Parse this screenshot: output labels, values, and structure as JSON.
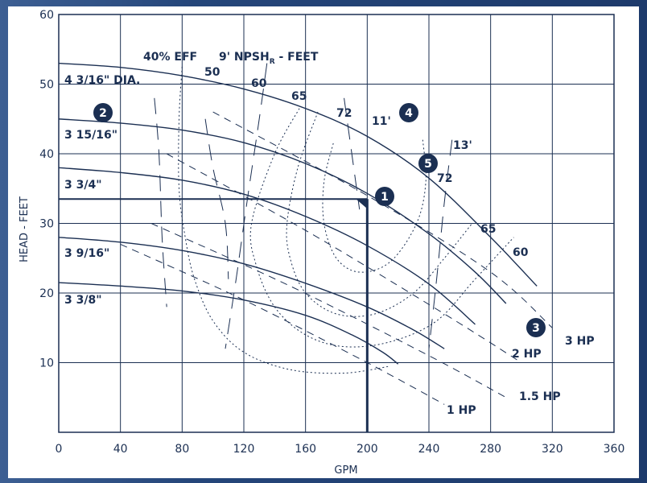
{
  "chart_data": {
    "type": "line",
    "xlabel": "GPM",
    "ylabel": "HEAD - FEET",
    "xlim": [
      0,
      360
    ],
    "ylim": [
      0,
      60
    ],
    "x_ticks": [
      "0",
      "40",
      "80",
      "120",
      "160",
      "200",
      "240",
      "280",
      "320",
      "360"
    ],
    "y_ticks": [
      "60",
      "50",
      "40",
      "30",
      "20",
      "10"
    ],
    "grid": true,
    "impeller_curves": [
      {
        "name": "4 3/16\" DIA.",
        "points": [
          [
            0,
            53
          ],
          [
            40,
            52.4
          ],
          [
            80,
            51.2
          ],
          [
            120,
            49.3
          ],
          [
            160,
            46.5
          ],
          [
            200,
            42.5
          ],
          [
            240,
            36.5
          ],
          [
            280,
            28
          ],
          [
            310,
            21
          ]
        ]
      },
      {
        "name": "3 15/16\"",
        "points": [
          [
            0,
            45
          ],
          [
            40,
            44.4
          ],
          [
            80,
            43.4
          ],
          [
            120,
            41.6
          ],
          [
            160,
            38.6
          ],
          [
            200,
            34.3
          ],
          [
            240,
            28.5
          ],
          [
            270,
            23
          ],
          [
            290,
            18.5
          ]
        ]
      },
      {
        "name": "3 3/4\"",
        "points": [
          [
            0,
            38
          ],
          [
            40,
            37.3
          ],
          [
            80,
            36.2
          ],
          [
            120,
            34.2
          ],
          [
            160,
            31
          ],
          [
            200,
            26.8
          ],
          [
            240,
            21.3
          ],
          [
            270,
            15.5
          ]
        ]
      },
      {
        "name": "3 9/16\"",
        "points": [
          [
            0,
            28
          ],
          [
            40,
            27.3
          ],
          [
            80,
            26.1
          ],
          [
            120,
            24.2
          ],
          [
            160,
            21.4
          ],
          [
            200,
            18
          ],
          [
            230,
            14.7
          ],
          [
            250,
            12
          ]
        ]
      },
      {
        "name": "3 3/8\"",
        "points": [
          [
            0,
            21.5
          ],
          [
            40,
            21
          ],
          [
            80,
            20.3
          ],
          [
            120,
            19
          ],
          [
            160,
            16.8
          ],
          [
            190,
            14
          ],
          [
            210,
            11.5
          ],
          [
            220,
            9.8
          ]
        ]
      }
    ],
    "efficiency_curves": [
      {
        "name": "50",
        "points": [
          [
            80,
            52.5
          ],
          [
            78,
            45
          ],
          [
            78,
            35
          ],
          [
            82,
            28
          ],
          [
            88,
            22
          ],
          [
            100,
            16
          ],
          [
            120,
            11.5
          ],
          [
            150,
            9
          ],
          [
            185,
            8.5
          ],
          [
            215,
            9.5
          ]
        ]
      },
      {
        "name": "60",
        "points": [
          [
            156,
            46.5
          ],
          [
            140,
            40
          ],
          [
            125,
            30
          ],
          [
            128,
            24
          ],
          [
            140,
            18
          ],
          [
            160,
            14
          ],
          [
            185,
            12.3
          ],
          [
            215,
            13
          ],
          [
            245,
            16
          ],
          [
            270,
            22
          ],
          [
            295,
            28
          ]
        ]
      },
      {
        "name": "65",
        "points": [
          [
            168,
            46
          ],
          [
            155,
            38
          ],
          [
            148,
            30
          ],
          [
            150,
            25
          ],
          [
            160,
            20
          ],
          [
            180,
            17
          ],
          [
            205,
            17
          ],
          [
            230,
            20
          ],
          [
            250,
            25
          ],
          [
            268,
            30
          ]
        ]
      },
      {
        "name": "72",
        "points": [
          [
            178,
            41.5
          ],
          [
            172,
            36
          ],
          [
            172,
            30
          ],
          [
            180,
            25
          ],
          [
            195,
            23
          ],
          [
            215,
            24.5
          ],
          [
            232,
            30
          ],
          [
            238,
            36
          ],
          [
            236,
            42
          ]
        ]
      }
    ],
    "efficiency_labels": [
      "40% EFF",
      "50",
      "60",
      "65",
      "72",
      "72",
      "65",
      "60"
    ],
    "npsh_label_main": "9' NPSH",
    "npsh_label_sub": "R",
    "npsh_label_tail": " - FEET",
    "npsh_labels": [
      "11'",
      "13'"
    ],
    "horsepower_lines": [
      {
        "name": "1 HP",
        "points": [
          [
            40,
            27
          ],
          [
            120,
            19
          ],
          [
            200,
            10
          ],
          [
            250,
            4
          ]
        ]
      },
      {
        "name": "1.5 HP",
        "points": [
          [
            60,
            30
          ],
          [
            150,
            21
          ],
          [
            240,
            11
          ],
          [
            290,
            5
          ]
        ]
      },
      {
        "name": "2 HP",
        "points": [
          [
            70,
            40
          ],
          [
            160,
            29
          ],
          [
            250,
            17
          ],
          [
            300,
            10
          ]
        ]
      },
      {
        "name": "3 HP",
        "points": [
          [
            100,
            46
          ],
          [
            200,
            34
          ],
          [
            280,
            23
          ],
          [
            320,
            15
          ]
        ]
      }
    ],
    "operating_point": {
      "gpm": 200,
      "head": 33.5
    },
    "markers": [
      "1",
      "2",
      "3",
      "4",
      "5"
    ]
  }
}
